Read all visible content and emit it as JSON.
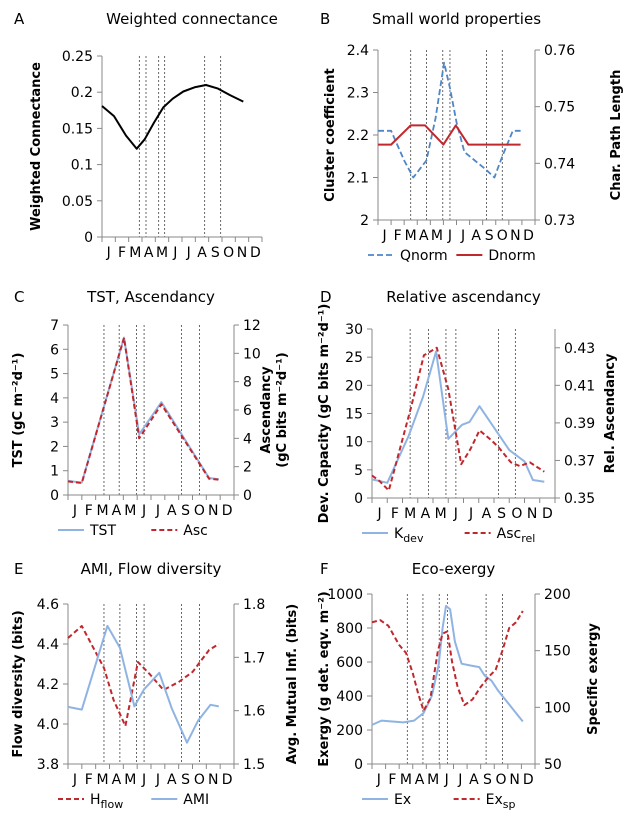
{
  "chart_data": [
    {
      "type": "line",
      "letter": "A",
      "title": "Weighted connectance",
      "x_ticks": [
        "J",
        "F",
        "M",
        "A",
        "M",
        "J",
        "J",
        "A",
        "S",
        "O",
        "N",
        "D"
      ],
      "xlim": [
        0,
        12
      ],
      "y_left": {
        "label": "Weighted Connectance",
        "lim": [
          0,
          0.25
        ],
        "ticks": [
          0,
          0.05,
          0.1,
          0.15,
          0.2,
          0.25
        ],
        "tick_labels": [
          "0",
          "0.05",
          "0.1",
          "0.15",
          "0.2",
          "0.25"
        ]
      },
      "y_right": null,
      "vlines": [
        2.8,
        3.3,
        4.25,
        4.7,
        7.7,
        8.9
      ],
      "legend": [],
      "series": [
        {
          "name": "",
          "axis": "left",
          "color": "#000000",
          "dash": "",
          "width": 2,
          "x": [
            0,
            0.9,
            1.8,
            2.6,
            3.2,
            3.9,
            4.6,
            5.3,
            6.1,
            7.0,
            7.8,
            8.7,
            9.6,
            10.6
          ],
          "y": [
            0.181,
            0.167,
            0.14,
            0.122,
            0.135,
            0.158,
            0.179,
            0.191,
            0.201,
            0.207,
            0.21,
            0.205,
            0.196,
            0.187
          ]
        }
      ]
    },
    {
      "type": "line",
      "letter": "B",
      "title": "Small world properties",
      "x_ticks": [
        "J",
        "F",
        "M",
        "A",
        "M",
        "J",
        "J",
        "A",
        "S",
        "O",
        "N",
        "D"
      ],
      "xlim": [
        0,
        12
      ],
      "y_left": {
        "label": "Cluster coefficient",
        "lim": [
          2,
          2.4
        ],
        "ticks": [
          2,
          2.1,
          2.2,
          2.3,
          2.4
        ],
        "tick_labels": [
          "2",
          "2.1",
          "2.2",
          "2.3",
          "2.4"
        ]
      },
      "y_right": {
        "label": "Char. Path Length",
        "lim": [
          0.73,
          0.76
        ],
        "ticks": [
          0.73,
          0.74,
          0.75,
          0.76
        ],
        "tick_labels": [
          "0.73",
          "0.74",
          "0.75",
          "0.76"
        ]
      },
      "vlines": [
        2.5,
        3.7,
        4.95,
        5.5,
        8.3,
        9.5
      ],
      "legend": [
        "Qnorm",
        "Dnorm"
      ],
      "series": [
        {
          "name": "Qnorm",
          "axis": "left",
          "color": "#4f86c6",
          "dash": "6,3",
          "width": 1.8,
          "x": [
            0,
            1,
            2,
            2.7,
            3.7,
            4.4,
            5.05,
            5.5,
            6.0,
            6.6,
            7.4,
            8.2,
            8.9,
            9.5,
            10.3,
            10.9
          ],
          "y": [
            2.21,
            2.21,
            2.14,
            2.1,
            2.14,
            2.24,
            2.37,
            2.31,
            2.23,
            2.16,
            2.14,
            2.12,
            2.1,
            2.15,
            2.21,
            2.21
          ]
        },
        {
          "name": "Dnorm",
          "axis": "right",
          "color": "#c0282d",
          "dash": "",
          "width": 2,
          "x": [
            0,
            1.0,
            2.5,
            3.6,
            5.0,
            5.95,
            6.9,
            8.5,
            9.8,
            10.9
          ],
          "y": [
            0.7433,
            0.7433,
            0.7467,
            0.7467,
            0.7433,
            0.7467,
            0.7433,
            0.7433,
            0.7433,
            0.7433
          ]
        }
      ]
    },
    {
      "type": "line",
      "letter": "C",
      "title": "TST, Ascendancy",
      "x_ticks": [
        "J",
        "F",
        "M",
        "A",
        "M",
        "J",
        "J",
        "A",
        "S",
        "O",
        "N",
        "D"
      ],
      "xlim": [
        0,
        12
      ],
      "y_left": {
        "label": "TST (gC m⁻²d⁻¹)",
        "lim": [
          0,
          7
        ],
        "ticks": [
          0,
          1,
          2,
          3,
          4,
          5,
          6,
          7
        ],
        "tick_labels": [
          "0",
          "1",
          "2",
          "3",
          "4",
          "5",
          "6",
          "7"
        ]
      },
      "y_right": {
        "label": [
          "Ascendancy",
          "(gC bits m⁻²d⁻¹)"
        ],
        "lim": [
          0,
          12
        ],
        "ticks": [
          0,
          2,
          4,
          6,
          8,
          10,
          12
        ],
        "tick_labels": [
          "0",
          "2",
          "4",
          "6",
          "8",
          "10",
          "12"
        ]
      },
      "vlines": [
        2.6,
        3.7,
        4.95,
        5.5,
        8.2,
        9.5
      ],
      "legend": [
        "TST",
        "Asc"
      ],
      "series": [
        {
          "name": "TST",
          "axis": "left",
          "color": "#8fb4e3",
          "dash": "",
          "width": 2,
          "x": [
            0,
            1,
            4.05,
            5.15,
            6.75,
            10.2,
            10.9
          ],
          "y": [
            0.58,
            0.51,
            6.48,
            2.5,
            3.82,
            0.7,
            0.65
          ]
        },
        {
          "name": "Asc",
          "axis": "right",
          "color": "#c0282d",
          "dash": "5,3",
          "width": 2,
          "x": [
            0,
            1,
            4.05,
            5.15,
            6.75,
            10.2,
            10.9
          ],
          "y": [
            0.96,
            0.85,
            11.1,
            4.0,
            6.4,
            1.15,
            1.08
          ]
        }
      ]
    },
    {
      "type": "line",
      "letter": "D",
      "title": "Relative ascendancy",
      "x_ticks": [
        "J",
        "F",
        "M",
        "A",
        "M",
        "J",
        "J",
        "A",
        "S",
        "O",
        "N",
        "D"
      ],
      "xlim": [
        0,
        12
      ],
      "y_left": {
        "label": "Dev. Capacity (gC bits m⁻²d⁻¹)",
        "lim": [
          0,
          30
        ],
        "ticks": [
          0,
          5,
          10,
          15,
          20,
          25,
          30
        ],
        "tick_labels": [
          "0",
          "5",
          "10",
          "15",
          "20",
          "25",
          "30"
        ]
      },
      "y_right": {
        "label": "Rel. Ascendancy",
        "lim": [
          0.35,
          0.44
        ],
        "ticks": [
          0.35,
          0.37,
          0.39,
          0.41,
          0.43
        ],
        "tick_labels": [
          "0.35",
          "0.37",
          "0.39",
          "0.41",
          "0.43"
        ]
      },
      "vlines": [
        2.5,
        3.7,
        4.85,
        5.5,
        8.3,
        9.4
      ],
      "legend": [
        "K_dev",
        "Asc_rel"
      ],
      "series": [
        {
          "name": "K_dev",
          "axis": "left",
          "color": "#8fb4e3",
          "dash": "",
          "width": 2,
          "x": [
            0,
            1.0,
            2.4,
            3.35,
            4.2,
            5.0,
            5.9,
            6.4,
            7.05,
            8.0,
            9.0,
            10.0,
            10.55,
            11.3
          ],
          "y": [
            3.3,
            2.7,
            11,
            18,
            26,
            10.5,
            13,
            13.5,
            16.3,
            12.5,
            8.5,
            6.5,
            3.2,
            2.9
          ]
        },
        {
          "name": "Asc_rel",
          "axis": "right",
          "color": "#c0282d",
          "dash": "5,3",
          "width": 2,
          "x": [
            0,
            0.5,
            1.1,
            2.55,
            3.4,
            4.25,
            5.0,
            5.85,
            6.45,
            7.05,
            7.8,
            8.3,
            9.1,
            9.7,
            10.35,
            11.3
          ],
          "y": [
            0.362,
            0.359,
            0.354,
            0.398,
            0.426,
            0.43,
            0.408,
            0.368,
            0.376,
            0.386,
            0.381,
            0.377,
            0.369,
            0.367,
            0.369,
            0.364
          ]
        }
      ]
    },
    {
      "type": "line",
      "letter": "E",
      "title": "AMI, Flow diversity",
      "x_ticks": [
        "J",
        "F",
        "M",
        "A",
        "M",
        "J",
        "J",
        "A",
        "S",
        "O",
        "N",
        "D"
      ],
      "xlim": [
        0,
        12
      ],
      "y_left": {
        "label": "Flow diversity (bits)",
        "lim": [
          3.8,
          4.6
        ],
        "ticks": [
          3.8,
          4.0,
          4.2,
          4.4,
          4.6
        ],
        "tick_labels": [
          "3.8",
          "4.0",
          "4.2",
          "4.4",
          "4.6"
        ]
      },
      "y_right": {
        "label": "Avg. Mutual Inf. (bits)",
        "lim": [
          1.5,
          1.8
        ],
        "ticks": [
          1.5,
          1.6,
          1.7,
          1.8
        ],
        "tick_labels": [
          "1.5",
          "1.6",
          "1.7",
          "1.8"
        ]
      },
      "vlines": [
        2.6,
        3.75,
        4.95,
        5.5,
        8.2,
        9.5
      ],
      "legend": [
        "H_flow",
        "AMI"
      ],
      "series": [
        {
          "name": "H_flow",
          "axis": "left",
          "color": "#c0282d",
          "dash": "5,3",
          "width": 2,
          "x": [
            0,
            1.0,
            2.6,
            3.3,
            4.15,
            5.05,
            5.9,
            6.9,
            8.0,
            9.0,
            10.2,
            10.9
          ],
          "y": [
            4.43,
            4.49,
            4.28,
            4.12,
            3.99,
            4.31,
            4.25,
            4.17,
            4.21,
            4.26,
            4.37,
            4.4
          ]
        },
        {
          "name": "AMI",
          "axis": "right",
          "color": "#8fb4e3",
          "dash": "",
          "width": 2,
          "x": [
            0,
            1.0,
            2.85,
            3.75,
            4.8,
            5.5,
            6.6,
            7.5,
            8.6,
            9.4,
            10.3,
            10.9
          ],
          "y": [
            1.607,
            1.602,
            1.759,
            1.718,
            1.608,
            1.64,
            1.671,
            1.604,
            1.54,
            1.581,
            1.611,
            1.608
          ]
        }
      ]
    },
    {
      "type": "line",
      "letter": "F",
      "title": "Eco-exergy",
      "x_ticks": [
        "J",
        "F",
        "M",
        "A",
        "M",
        "J",
        "J",
        "A",
        "S",
        "O",
        "N",
        "D"
      ],
      "xlim": [
        0,
        12
      ],
      "y_left": {
        "label": "Exergy (g det. eqv. m⁻²)",
        "lim": [
          0,
          1000
        ],
        "ticks": [
          0,
          200,
          400,
          600,
          800,
          1000
        ],
        "tick_labels": [
          "0",
          "200",
          "400",
          "600",
          "800",
          "1000"
        ]
      },
      "y_right": {
        "label": "Specific exergy",
        "lim": [
          50,
          200
        ],
        "ticks": [
          50,
          100,
          150,
          200
        ],
        "tick_labels": [
          "50",
          "100",
          "150",
          "200"
        ]
      },
      "vlines": [
        2.6,
        3.75,
        4.95,
        5.55,
        8.4,
        9.6
      ],
      "legend": [
        "Ex",
        "Ex_sp"
      ],
      "series": [
        {
          "name": "Ex",
          "axis": "left",
          "color": "#8fb4e3",
          "dash": "",
          "width": 2,
          "x": [
            0,
            0.7,
            1.5,
            2.3,
            3.1,
            3.8,
            4.4,
            4.9,
            5.2,
            5.45,
            5.75,
            6.1,
            6.6,
            7.2,
            7.9,
            8.3,
            8.8,
            9.3,
            9.8,
            10.4,
            11.1
          ],
          "y": [
            230,
            255,
            250,
            245,
            255,
            300,
            400,
            580,
            800,
            930,
            910,
            720,
            590,
            580,
            570,
            520,
            490,
            430,
            380,
            320,
            250
          ]
        },
        {
          "name": "Ex_sp",
          "axis": "right",
          "color": "#c0282d",
          "dash": "5,3",
          "width": 2,
          "x": [
            0,
            0.6,
            1.2,
            2.0,
            2.5,
            3.0,
            3.4,
            3.8,
            4.3,
            4.85,
            5.2,
            5.55,
            5.9,
            6.3,
            6.8,
            7.4,
            8.0,
            8.6,
            9.1,
            9.6,
            10.1,
            10.6,
            11.1
          ],
          "y": [
            175,
            177,
            172,
            155,
            148,
            130,
            112,
            97,
            108,
            150,
            165,
            167,
            140,
            118,
            102,
            107,
            118,
            127,
            133,
            150,
            170,
            175,
            185
          ]
        }
      ]
    }
  ]
}
